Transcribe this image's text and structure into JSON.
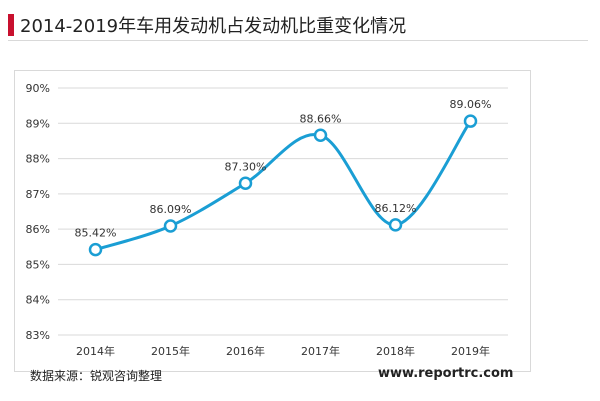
{
  "header": {
    "title": "2014-2019年车用发动机占发动机比重变化情况"
  },
  "footer": {
    "source": "数据来源：锐观咨询整理",
    "site": "www.reportrc.com"
  },
  "colors": {
    "accent": "#c8102e",
    "line": "#1a9ed4",
    "grid": "#d9d9d9",
    "text": "#333333"
  },
  "chart_data": {
    "type": "line",
    "title": "2014-2019年车用发动机占发动机比重变化情况",
    "categories": [
      "2014年",
      "2015年",
      "2016年",
      "2017年",
      "2018年",
      "2019年"
    ],
    "series": [
      {
        "name": "车用发动机占发动机比重",
        "values": [
          85.42,
          86.09,
          87.3,
          88.66,
          86.12,
          89.06
        ]
      }
    ],
    "data_labels": [
      "85.42%",
      "86.09%",
      "87.30%",
      "88.66%",
      "86.12%",
      "89.06%"
    ],
    "ylim": [
      83,
      90
    ],
    "yticks": [
      83,
      84,
      85,
      86,
      87,
      88,
      89,
      90
    ],
    "ytick_labels": [
      "83%",
      "84%",
      "85%",
      "86%",
      "87%",
      "88%",
      "89%",
      "90%"
    ],
    "xlabel": "",
    "ylabel": "",
    "grid": true,
    "smooth": true
  }
}
